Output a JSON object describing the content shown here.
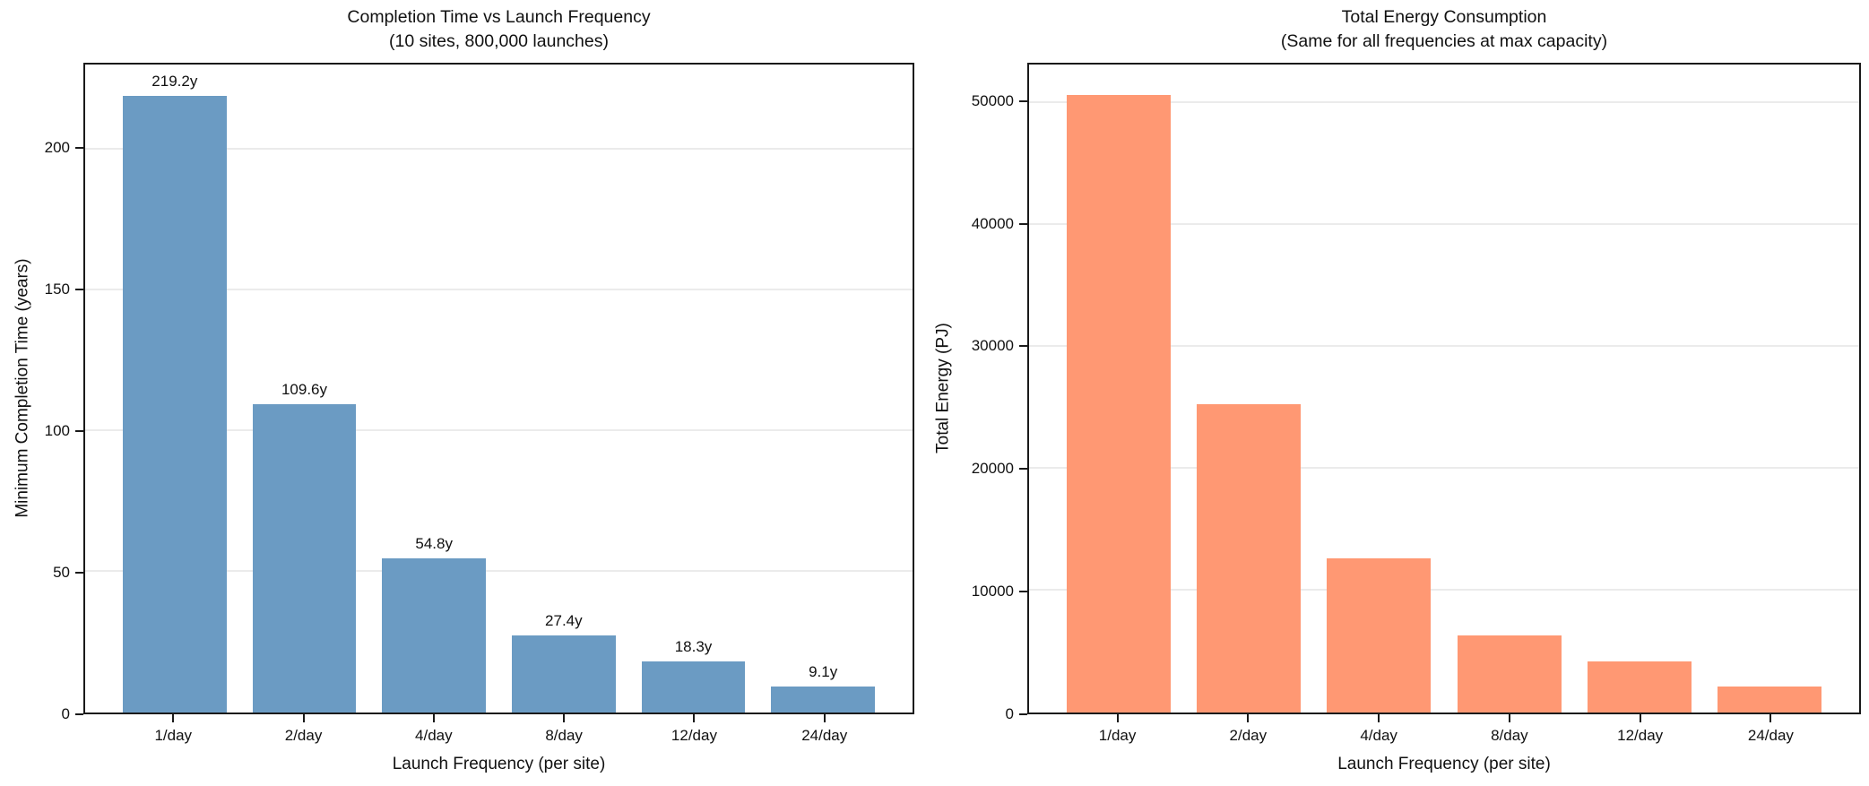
{
  "figure": {
    "background": "#ffffff",
    "text_color": "#111111",
    "grid_color": "#ebebeb",
    "spine_color": "#1a1a1a"
  },
  "chart_data": [
    {
      "type": "bar",
      "title": "Completion Time vs Launch Frequency",
      "subtitle": "(10 sites, 800,000 launches)",
      "categories": [
        "1/day",
        "2/day",
        "4/day",
        "8/day",
        "12/day",
        "24/day"
      ],
      "values": [
        219.2,
        109.6,
        54.8,
        27.4,
        18.3,
        9.1
      ],
      "bar_labels": [
        "219.2y",
        "109.6y",
        "54.8y",
        "27.4y",
        "18.3y",
        "9.1y"
      ],
      "xlabel": "Launch Frequency (per site)",
      "ylabel": "Minimum Completion Time (years)",
      "yticks": [
        0,
        50,
        100,
        150,
        200
      ],
      "ylim": [
        0,
        230.2
      ],
      "bar_color": "#6b9bc3",
      "grid": true,
      "legend": null
    },
    {
      "type": "bar",
      "title": "Total Energy Consumption",
      "subtitle": "(Same for all frequencies at max capacity)",
      "categories": [
        "1/day",
        "2/day",
        "4/day",
        "8/day",
        "12/day",
        "24/day"
      ],
      "values": [
        50600,
        25300,
        12650,
        6325,
        4217,
        2108
      ],
      "bar_labels": null,
      "xlabel": "Launch Frequency (per site)",
      "ylabel": "Total Energy (PJ)",
      "yticks": [
        0,
        10000,
        20000,
        30000,
        40000,
        50000
      ],
      "ylim": [
        0,
        53130
      ],
      "bar_color": "#ff9873",
      "grid": true,
      "legend": null
    }
  ]
}
